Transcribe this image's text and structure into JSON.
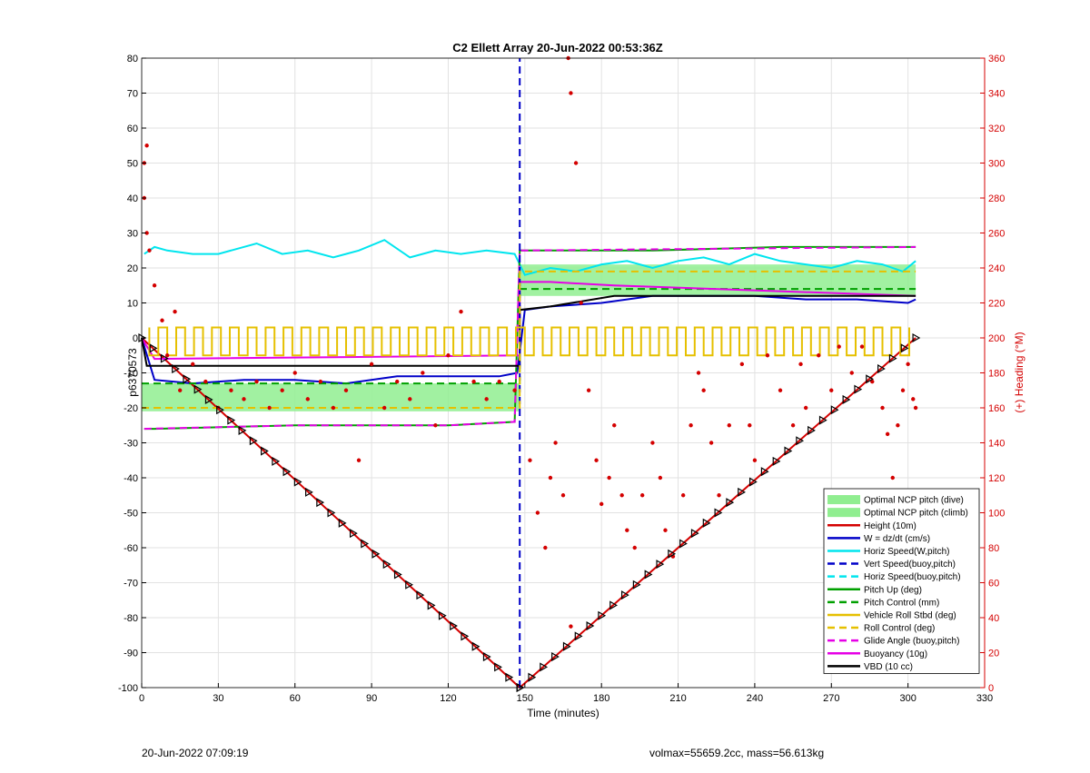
{
  "footer": {
    "left": "20-Jun-2022 07:09:19",
    "right": "volmax=55659.2cc, mass=56.613kg"
  },
  "chart_data": {
    "type": "line",
    "title": "C2 Ellett Array 20-Jun-2022 00:53:36Z",
    "xlabel": "Time (minutes)",
    "ylabel": "p6370573",
    "y2label": "(+) Heading (°M)",
    "xlim": [
      0,
      330
    ],
    "ylim": [
      -100,
      80
    ],
    "y2lim": [
      0,
      360
    ],
    "xticks": [
      "0",
      "30",
      "60",
      "90",
      "120",
      "150",
      "180",
      "210",
      "240",
      "270",
      "300",
      "330"
    ],
    "yticks": [
      "-100",
      "-90",
      "-80",
      "-70",
      "-60",
      "-50",
      "-40",
      "-30",
      "-20",
      "-10",
      "0",
      "10",
      "20",
      "30",
      "40",
      "50",
      "60",
      "70",
      "80"
    ],
    "y2ticks": [
      "0",
      "20",
      "40",
      "60",
      "80",
      "100",
      "120",
      "140",
      "160",
      "180",
      "200",
      "220",
      "240",
      "260",
      "280",
      "300",
      "320",
      "340",
      "360"
    ],
    "grid": true,
    "legend_position": "bottom-right",
    "colors": {
      "green_band": "#90ee90",
      "red": "#d40000",
      "blue": "#0000c8",
      "cyan": "#00e5ee",
      "green": "#00a000",
      "yellow": "#e6c000",
      "magenta": "#e600e6",
      "black": "#000000"
    },
    "legend": [
      {
        "label": "Optimal NCP pitch (dive)",
        "style": "patch",
        "color": "#90ee90"
      },
      {
        "label": "Optimal NCP pitch (climb)",
        "style": "patch",
        "color": "#90ee90"
      },
      {
        "label": "Height (10m)",
        "style": "solid",
        "color": "#d40000"
      },
      {
        "label": "W = dz/dt (cm/s)",
        "style": "solid",
        "color": "#0000c8"
      },
      {
        "label": "Horiz Speed(W,pitch)",
        "style": "solid",
        "color": "#00e5ee"
      },
      {
        "label": "Vert Speed(buoy,pitch)",
        "style": "dashed",
        "color": "#0000c8"
      },
      {
        "label": "Horiz Speed(buoy,pitch)",
        "style": "dashed",
        "color": "#00e5ee"
      },
      {
        "label": "Pitch Up (deg)",
        "style": "solid",
        "color": "#00a000"
      },
      {
        "label": "Pitch Control (mm)",
        "style": "dashed",
        "color": "#00a000"
      },
      {
        "label": "Vehicle Roll Stbd (deg)",
        "style": "solid",
        "color": "#e6c000"
      },
      {
        "label": "Roll Control (deg)",
        "style": "dashed",
        "color": "#e6c000"
      },
      {
        "label": "Glide Angle (buoy,pitch)",
        "style": "dashed",
        "color": "#e600e6"
      },
      {
        "label": "Buoyancy (10g)",
        "style": "solid",
        "color": "#e600e6"
      },
      {
        "label": "VBD (10 cc)",
        "style": "solid",
        "color": "#000000"
      }
    ],
    "bands": [
      {
        "name": "Optimal NCP pitch (dive)",
        "x": [
          0,
          148
        ],
        "y": [
          -21,
          -13
        ]
      },
      {
        "name": "Optimal NCP pitch (climb)",
        "x": [
          148,
          303
        ],
        "y": [
          12,
          21
        ]
      }
    ],
    "series": [
      {
        "name": "Height (10m)",
        "style": "solid",
        "color": "#d40000",
        "x": [
          0,
          148,
          303
        ],
        "y": [
          0,
          -100,
          0
        ]
      },
      {
        "name": "W = dz/dt (cm/s)",
        "style": "solid",
        "color": "#0000c8",
        "x": [
          0,
          5,
          20,
          40,
          60,
          80,
          100,
          120,
          140,
          147,
          150,
          160,
          180,
          200,
          220,
          240,
          260,
          280,
          300,
          303
        ],
        "y": [
          0,
          -12,
          -13,
          -12,
          -12,
          -13,
          -11,
          -11,
          -11,
          -10,
          8,
          9,
          10,
          12,
          12,
          12,
          11,
          11,
          10,
          11
        ]
      },
      {
        "name": "Horiz Speed(W,pitch)",
        "style": "solid",
        "color": "#00e5ee",
        "x": [
          1,
          5,
          10,
          20,
          30,
          45,
          55,
          65,
          75,
          85,
          95,
          105,
          115,
          125,
          135,
          146,
          150,
          160,
          170,
          180,
          190,
          200,
          210,
          220,
          230,
          240,
          250,
          260,
          270,
          280,
          290,
          298,
          303
        ],
        "y": [
          24,
          26,
          25,
          24,
          24,
          27,
          24,
          25,
          23,
          25,
          28,
          23,
          25,
          24,
          25,
          24,
          18,
          20,
          19,
          21,
          22,
          20,
          22,
          23,
          21,
          24,
          22,
          21,
          20,
          22,
          21,
          19,
          22
        ]
      },
      {
        "name": "Pitch Up (deg)",
        "style": "solid",
        "color": "#00a000",
        "x": [
          1,
          5,
          60,
          120,
          146,
          148,
          150,
          200,
          250,
          303
        ],
        "y": [
          -26,
          -26,
          -25,
          -25,
          -24,
          25,
          25,
          25,
          26,
          26
        ]
      },
      {
        "name": "Pitch Control (mm)",
        "style": "dashed",
        "color": "#00a000",
        "x": [
          0,
          148,
          148,
          303
        ],
        "y": [
          -13,
          -13,
          14,
          14
        ]
      },
      {
        "name": "Glide Angle (buoy,pitch)",
        "style": "dashed",
        "color": "#e600e6",
        "x": [
          1,
          60,
          120,
          146,
          148,
          303
        ],
        "y": [
          -26,
          -25,
          -25,
          -24,
          25,
          26
        ]
      },
      {
        "name": "Buoyancy (10g)",
        "style": "solid",
        "color": "#e600e6",
        "x": [
          0,
          5,
          148,
          148,
          160,
          185,
          303
        ],
        "y": [
          0,
          -6,
          -5,
          16,
          16,
          15,
          12
        ]
      },
      {
        "name": "VBD (10 cc)",
        "style": "solid",
        "color": "#000000",
        "x": [
          0,
          2,
          148,
          148,
          160,
          185,
          303
        ],
        "y": [
          0,
          -8,
          -8,
          8,
          9,
          12,
          12
        ]
      },
      {
        "name": "Vert Speed(buoy,pitch)",
        "style": "dashed",
        "color": "#0000c8",
        "x": [
          148,
          148
        ],
        "y": [
          -100,
          80
        ]
      },
      {
        "name": "Roll Control (deg)",
        "style": "dashed",
        "color": "#e6c000",
        "x": [
          0,
          148,
          148,
          303
        ],
        "y": [
          -20,
          -20,
          19,
          19
        ]
      },
      {
        "name": "Vehicle Roll Stbd (deg)",
        "style": "solid",
        "color": "#e6c000",
        "pattern": "square_wave",
        "x_start": 3,
        "x_end": 302,
        "period": 7,
        "low": -5,
        "high": 3
      }
    ],
    "heading_points": [
      {
        "x": 1,
        "y": 300
      },
      {
        "x": 2,
        "y": 310
      },
      {
        "x": 1,
        "y": 280
      },
      {
        "x": 2,
        "y": 260
      },
      {
        "x": 3,
        "y": 250
      },
      {
        "x": 5,
        "y": 230
      },
      {
        "x": 8,
        "y": 210
      },
      {
        "x": 10,
        "y": 190
      },
      {
        "x": 13,
        "y": 215
      },
      {
        "x": 15,
        "y": 170
      },
      {
        "x": 20,
        "y": 185
      },
      {
        "x": 25,
        "y": 175
      },
      {
        "x": 30,
        "y": 160
      },
      {
        "x": 35,
        "y": 170
      },
      {
        "x": 40,
        "y": 165
      },
      {
        "x": 45,
        "y": 175
      },
      {
        "x": 50,
        "y": 160
      },
      {
        "x": 55,
        "y": 170
      },
      {
        "x": 60,
        "y": 180
      },
      {
        "x": 65,
        "y": 165
      },
      {
        "x": 70,
        "y": 175
      },
      {
        "x": 75,
        "y": 160
      },
      {
        "x": 80,
        "y": 170
      },
      {
        "x": 85,
        "y": 130
      },
      {
        "x": 90,
        "y": 185
      },
      {
        "x": 95,
        "y": 160
      },
      {
        "x": 100,
        "y": 175
      },
      {
        "x": 105,
        "y": 165
      },
      {
        "x": 110,
        "y": 180
      },
      {
        "x": 115,
        "y": 150
      },
      {
        "x": 120,
        "y": 190
      },
      {
        "x": 125,
        "y": 215
      },
      {
        "x": 130,
        "y": 175
      },
      {
        "x": 135,
        "y": 165
      },
      {
        "x": 140,
        "y": 175
      },
      {
        "x": 146,
        "y": 170
      },
      {
        "x": 152,
        "y": 130
      },
      {
        "x": 155,
        "y": 100
      },
      {
        "x": 158,
        "y": 80
      },
      {
        "x": 160,
        "y": 120
      },
      {
        "x": 162,
        "y": 140
      },
      {
        "x": 165,
        "y": 110
      },
      {
        "x": 168,
        "y": 35
      },
      {
        "x": 167,
        "y": 360
      },
      {
        "x": 168,
        "y": 340
      },
      {
        "x": 170,
        "y": 300
      },
      {
        "x": 172,
        "y": 220
      },
      {
        "x": 175,
        "y": 170
      },
      {
        "x": 178,
        "y": 130
      },
      {
        "x": 180,
        "y": 105
      },
      {
        "x": 183,
        "y": 120
      },
      {
        "x": 185,
        "y": 150
      },
      {
        "x": 188,
        "y": 110
      },
      {
        "x": 190,
        "y": 90
      },
      {
        "x": 193,
        "y": 80
      },
      {
        "x": 196,
        "y": 110
      },
      {
        "x": 200,
        "y": 140
      },
      {
        "x": 203,
        "y": 120
      },
      {
        "x": 205,
        "y": 90
      },
      {
        "x": 208,
        "y": 75
      },
      {
        "x": 212,
        "y": 110
      },
      {
        "x": 215,
        "y": 150
      },
      {
        "x": 218,
        "y": 180
      },
      {
        "x": 220,
        "y": 170
      },
      {
        "x": 223,
        "y": 140
      },
      {
        "x": 226,
        "y": 110
      },
      {
        "x": 230,
        "y": 150
      },
      {
        "x": 235,
        "y": 185
      },
      {
        "x": 238,
        "y": 150
      },
      {
        "x": 240,
        "y": 130
      },
      {
        "x": 245,
        "y": 190
      },
      {
        "x": 250,
        "y": 170
      },
      {
        "x": 255,
        "y": 150
      },
      {
        "x": 258,
        "y": 185
      },
      {
        "x": 260,
        "y": 160
      },
      {
        "x": 265,
        "y": 190
      },
      {
        "x": 270,
        "y": 170
      },
      {
        "x": 273,
        "y": 195
      },
      {
        "x": 278,
        "y": 180
      },
      {
        "x": 282,
        "y": 195
      },
      {
        "x": 286,
        "y": 175
      },
      {
        "x": 290,
        "y": 160
      },
      {
        "x": 292,
        "y": 145
      },
      {
        "x": 294,
        "y": 120
      },
      {
        "x": 296,
        "y": 150
      },
      {
        "x": 298,
        "y": 170
      },
      {
        "x": 300,
        "y": 185
      },
      {
        "x": 302,
        "y": 165
      },
      {
        "x": 303,
        "y": 160
      }
    ]
  }
}
